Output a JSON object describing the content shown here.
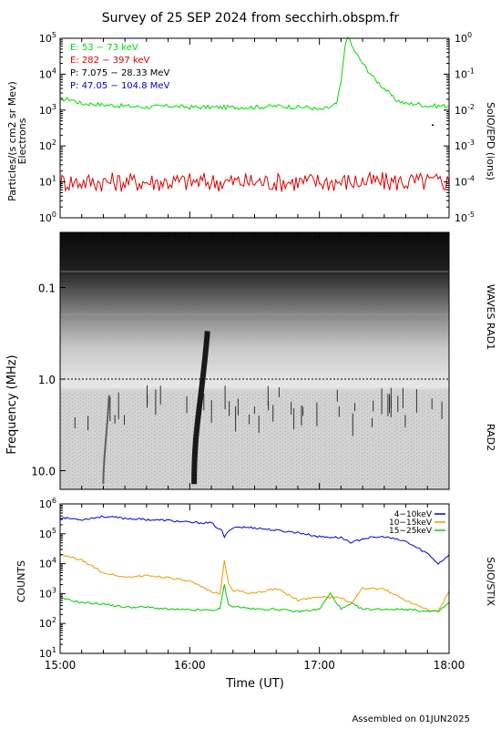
{
  "title": "Survey of 25 SEP 2024 from secchirh.obspm.fr",
  "footer": "Assembled on 01JUN2025",
  "colors": {
    "background": "#ffffff",
    "axis": "#000000",
    "electrons_low": "#00dd00",
    "electrons_high": "#dd0000",
    "protons_low": "#000000",
    "protons_high": "#0000cc",
    "stix_4_10": "#0000cc",
    "stix_10_15": "#ee9900",
    "stix_15_25": "#00cc00"
  },
  "chart_data": [
    {
      "id": "epd",
      "type": "line",
      "instrument_label": "SoIO/EPD (ions)",
      "ylabel_lines": [
        "Particles/(s cm2 sr Mev)",
        "Electrons"
      ],
      "y_scale": "log",
      "ylim": [
        1,
        100000
      ],
      "yticks": [
        {
          "v": 1,
          "label": "10",
          "exp": "0"
        },
        {
          "v": 10,
          "label": "10",
          "exp": "1"
        },
        {
          "v": 100,
          "label": "10",
          "exp": "2"
        },
        {
          "v": 1000,
          "label": "10",
          "exp": "3"
        },
        {
          "v": 10000,
          "label": "10",
          "exp": "4"
        },
        {
          "v": 100000,
          "label": "10",
          "exp": "5"
        }
      ],
      "y2_scale": "log",
      "y2lim": [
        1e-05,
        1
      ],
      "y2ticks": [
        {
          "v": 1e-05,
          "label": "10",
          "exp": "-5"
        },
        {
          "v": 0.0001,
          "label": "10",
          "exp": "-4"
        },
        {
          "v": 0.001,
          "label": "10",
          "exp": "-3"
        },
        {
          "v": 0.01,
          "label": "10",
          "exp": "-2"
        },
        {
          "v": 0.1,
          "label": "10",
          "exp": "-1"
        },
        {
          "v": 1,
          "label": "10",
          "exp": "0"
        }
      ],
      "xlim": [
        "15:00",
        "18:00"
      ],
      "legend": [
        {
          "label": "E: 53 − 73 keV",
          "color": "#00dd00"
        },
        {
          "label": "E: 282 − 397 keV",
          "color": "#dd0000"
        },
        {
          "label": "P: 7.075 − 28.33 MeV",
          "color": "#000000"
        },
        {
          "label": "P: 47.05 − 104.8 MeV",
          "color": "#0000cc"
        }
      ],
      "series": [
        {
          "name": "E: 53 − 73 keV",
          "color": "#00dd00",
          "x": [
            "15:00",
            "15:05",
            "15:10",
            "15:15",
            "15:20",
            "15:30",
            "15:40",
            "15:50",
            "16:00",
            "16:10",
            "16:20",
            "16:30",
            "16:40",
            "16:50",
            "16:55",
            "17:00",
            "17:05",
            "17:08",
            "17:10",
            "17:12",
            "17:13",
            "17:15",
            "17:18",
            "17:20",
            "17:25",
            "17:30",
            "17:35",
            "17:40",
            "17:45",
            "17:50",
            "17:55",
            "18:00"
          ],
          "y": [
            2000,
            2000,
            1500,
            1500,
            1400,
            1300,
            1200,
            1300,
            1200,
            1200,
            1200,
            1200,
            1300,
            1200,
            1200,
            1000,
            1200,
            1500,
            6000,
            70000,
            120000,
            60000,
            30000,
            20000,
            8000,
            4000,
            2000,
            1500,
            1500,
            1300,
            1300,
            1300
          ]
        },
        {
          "name": "E: 282 − 397 keV",
          "color": "#dd0000",
          "x": [
            "15:00",
            "15:30",
            "16:00",
            "16:30",
            "17:00",
            "17:30",
            "18:00"
          ],
          "y": [
            10,
            10,
            10,
            10,
            10,
            10,
            10
          ]
        },
        {
          "name": "P: 7.075 − 28.33 MeV",
          "color": "#000000",
          "x": [
            "17:52"
          ],
          "y": [
            400
          ]
        }
      ]
    },
    {
      "id": "waves",
      "type": "heatmap",
      "instrument_labels": [
        "WAVES RAD1",
        "RAD2"
      ],
      "ylabel": "Frequency (MHz)",
      "y_scale": "log",
      "y_inverted": true,
      "ylim": [
        0.025,
        16
      ],
      "yticks": [
        {
          "v": 0.1,
          "label": "0.1"
        },
        {
          "v": 1,
          "label": "1.0"
        },
        {
          "v": 10,
          "label": "10.0"
        }
      ],
      "xlim": [
        "15:00",
        "18:00"
      ],
      "bursts": [
        {
          "start": "16:02",
          "end": "16:04",
          "f_high": 0.3,
          "f_low": 14,
          "intensity": "strong"
        },
        {
          "start": "15:20",
          "end": "15:21",
          "f_high": 1.5,
          "f_low": 14,
          "intensity": "weak"
        }
      ]
    },
    {
      "id": "stix",
      "type": "line",
      "instrument_label": "SoIO/STIX",
      "ylabel": "COUNTS",
      "xlabel": "Time (UT)",
      "y_scale": "log",
      "ylim": [
        10,
        1000000
      ],
      "yticks": [
        {
          "v": 10,
          "label": "10",
          "exp": "1"
        },
        {
          "v": 100,
          "label": "10",
          "exp": "2"
        },
        {
          "v": 1000,
          "label": "10",
          "exp": "3"
        },
        {
          "v": 10000,
          "label": "10",
          "exp": "4"
        },
        {
          "v": 100000,
          "label": "10",
          "exp": "5"
        },
        {
          "v": 1000000,
          "label": "10",
          "exp": "6"
        }
      ],
      "xlim": [
        "15:00",
        "18:00"
      ],
      "xticks": [
        "15:00",
        "16:00",
        "17:00",
        "18:00"
      ],
      "legend": [
        {
          "label": "4−10keV",
          "color": "#0000cc"
        },
        {
          "label": "10−15keV",
          "color": "#ee9900"
        },
        {
          "label": "15−25keV",
          "color": "#00cc00"
        }
      ],
      "series": [
        {
          "name": "4−10keV",
          "color": "#0000cc",
          "x": [
            "15:00",
            "15:10",
            "15:20",
            "15:30",
            "15:40",
            "15:50",
            "16:00",
            "16:10",
            "16:15",
            "16:16",
            "16:20",
            "16:30",
            "16:40",
            "16:50",
            "17:00",
            "17:10",
            "17:15",
            "17:20",
            "17:30",
            "17:40",
            "17:50",
            "17:55",
            "18:00"
          ],
          "y": [
            350000,
            300000,
            380000,
            330000,
            300000,
            280000,
            240000,
            230000,
            120000,
            80000,
            170000,
            160000,
            130000,
            110000,
            80000,
            75000,
            50000,
            70000,
            80000,
            55000,
            22000,
            10000,
            20000
          ]
        },
        {
          "name": "10−15keV",
          "color": "#ee9900",
          "x": [
            "15:00",
            "15:10",
            "15:20",
            "15:30",
            "15:40",
            "15:50",
            "16:00",
            "16:10",
            "16:14",
            "16:16",
            "16:18",
            "16:20",
            "16:30",
            "16:40",
            "16:50",
            "17:00",
            "17:10",
            "17:15",
            "17:20",
            "17:30",
            "17:40",
            "17:50",
            "17:55",
            "18:00"
          ],
          "y": [
            20000,
            13000,
            5000,
            3500,
            4000,
            3500,
            2500,
            1200,
            1000,
            12000,
            2000,
            1300,
            1000,
            1500,
            600,
            800,
            700,
            500,
            1500,
            1400,
            600,
            300,
            250,
            1200
          ]
        },
        {
          "name": "15−25keV",
          "color": "#00cc00",
          "x": [
            "15:00",
            "15:10",
            "15:20",
            "15:30",
            "15:40",
            "15:50",
            "16:00",
            "16:10",
            "16:14",
            "16:16",
            "16:18",
            "16:30",
            "16:40",
            "16:50",
            "17:00",
            "17:05",
            "17:10",
            "17:15",
            "17:20",
            "17:30",
            "17:40",
            "17:50",
            "17:55",
            "18:00"
          ],
          "y": [
            700,
            500,
            450,
            350,
            350,
            300,
            280,
            280,
            300,
            2000,
            400,
            300,
            300,
            250,
            300,
            1000,
            300,
            450,
            300,
            300,
            300,
            250,
            250,
            500
          ]
        }
      ]
    }
  ]
}
